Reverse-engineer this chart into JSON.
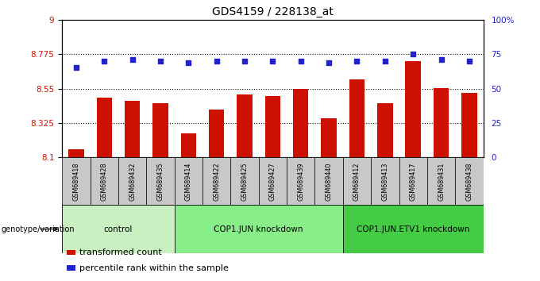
{
  "title": "GDS4159 / 228138_at",
  "samples": [
    "GSM689418",
    "GSM689428",
    "GSM689432",
    "GSM689435",
    "GSM689414",
    "GSM689422",
    "GSM689425",
    "GSM689427",
    "GSM689439",
    "GSM689440",
    "GSM689412",
    "GSM689413",
    "GSM689417",
    "GSM689431",
    "GSM689438"
  ],
  "bar_values": [
    8.155,
    8.49,
    8.47,
    8.455,
    8.255,
    8.415,
    8.51,
    8.5,
    8.545,
    8.355,
    8.61,
    8.455,
    8.73,
    8.555,
    8.52
  ],
  "dot_values": [
    65,
    70,
    71,
    70,
    69,
    70,
    70,
    70,
    70,
    69,
    70,
    70,
    75,
    71,
    70
  ],
  "bar_color": "#cc1100",
  "dot_color": "#2222cc",
  "ylim_left": [
    8.1,
    9.0
  ],
  "ylim_right": [
    0,
    100
  ],
  "yticks_left": [
    8.1,
    8.325,
    8.55,
    8.775,
    9.0
  ],
  "ytick_labels_left": [
    "8.1",
    "8.325",
    "8.55",
    "8.775",
    "9"
  ],
  "yticks_right": [
    0,
    25,
    50,
    75,
    100
  ],
  "ytick_labels_right": [
    "0",
    "25",
    "50",
    "75",
    "100%"
  ],
  "hlines": [
    8.325,
    8.55,
    8.775
  ],
  "groups": [
    {
      "label": "control",
      "start": 0,
      "end": 4,
      "color": "#c8f0c0"
    },
    {
      "label": "COP1.JUN knockdown",
      "start": 4,
      "end": 10,
      "color": "#88ee88"
    },
    {
      "label": "COP1.JUN.ETV1 knockdown",
      "start": 10,
      "end": 15,
      "color": "#44cc44"
    }
  ],
  "legend_bar_label": "transformed count",
  "legend_dot_label": "percentile rank within the sample",
  "genotype_label": "genotype/variation",
  "background_color": "#ffffff",
  "plot_bg_color": "#ffffff",
  "sample_box_color": "#c8c8c8",
  "grid_color": "#000000",
  "tick_label_color_left": "#cc1100",
  "tick_label_color_right": "#2222cc",
  "title_fontsize": 10,
  "bar_width": 0.55
}
